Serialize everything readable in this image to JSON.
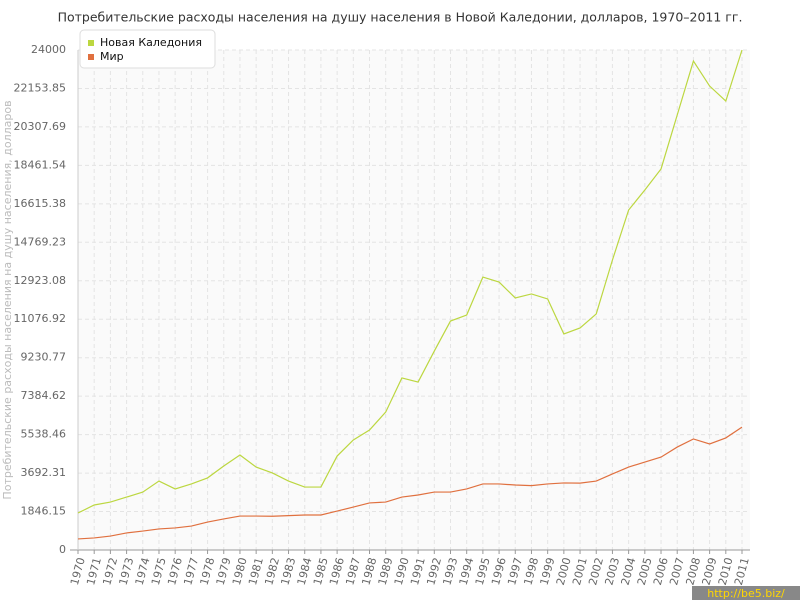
{
  "chart_data": {
    "type": "line",
    "title": "Потребительские расходы населения на душу населения в Новой Каледонии, долларов, 1970–2011 гг.",
    "y_label": "Потребительские расходы населения на душу населения, долларов",
    "watermark": "http://be5.biz/",
    "x": [
      1970,
      1971,
      1972,
      1973,
      1974,
      1975,
      1976,
      1977,
      1978,
      1979,
      1980,
      1981,
      1982,
      1983,
      1984,
      1985,
      1986,
      1987,
      1988,
      1989,
      1990,
      1991,
      1992,
      1993,
      1994,
      1995,
      1996,
      1997,
      1998,
      1999,
      2000,
      2001,
      2002,
      2003,
      2004,
      2005,
      2006,
      2007,
      2008,
      2009,
      2010,
      2011
    ],
    "xlim": [
      1970,
      2011
    ],
    "series": [
      {
        "name": "Новая Каледония",
        "color": "#bcd740",
        "values": [
          1776,
          2160,
          2300,
          2540,
          2780,
          3310,
          2930,
          3170,
          3460,
          4030,
          4560,
          3980,
          3700,
          3310,
          3020,
          3020,
          4510,
          5280,
          5760,
          6620,
          8260,
          8060,
          9550,
          10990,
          11280,
          13100,
          12860,
          12100,
          12290,
          12050,
          10370,
          10660,
          11330,
          13920,
          16320,
          17280,
          18290,
          20880,
          23470,
          22270,
          21550,
          24000
        ]
      },
      {
        "name": "Мир",
        "color": "#e0703f",
        "values": [
          530,
          580,
          670,
          820,
          910,
          1010,
          1060,
          1150,
          1340,
          1490,
          1630,
          1630,
          1620,
          1650,
          1680,
          1680,
          1870,
          2060,
          2260,
          2300,
          2540,
          2640,
          2780,
          2780,
          2930,
          3170,
          3170,
          3120,
          3090,
          3170,
          3220,
          3210,
          3310,
          3650,
          3980,
          4220,
          4460,
          4940,
          5330,
          5090,
          5380,
          5900
        ]
      }
    ],
    "ylim": [
      0,
      24000
    ],
    "yticks": [
      0,
      1846.15,
      3692.31,
      5538.46,
      7384.62,
      9230.77,
      11076.92,
      12923.08,
      14769.23,
      16615.38,
      18461.54,
      20307.69,
      22153.85,
      24000
    ],
    "grid": true,
    "legend": "top-left"
  }
}
